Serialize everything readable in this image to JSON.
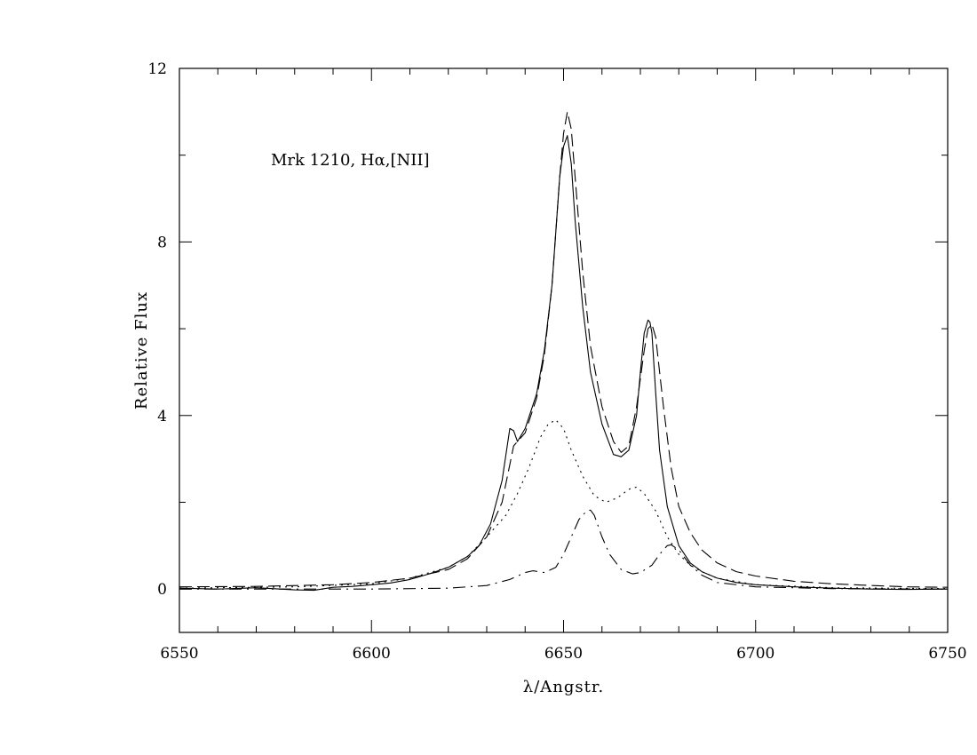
{
  "chart_data": {
    "type": "line",
    "title": "",
    "annotation": "Mrk  1210,  Hα,[NII]",
    "xlabel": "λ/Angstr.",
    "ylabel": "Relative  Flux",
    "xlim": [
      6550,
      6750
    ],
    "ylim": [
      -1,
      12
    ],
    "xticks": [
      6550,
      6600,
      6650,
      6700,
      6750
    ],
    "yticks": [
      0,
      4,
      8,
      12
    ],
    "grid": false,
    "legend": "none",
    "series": [
      {
        "style": "solid",
        "x": [
          6550,
          6560,
          6570,
          6580,
          6585,
          6590,
          6595,
          6600,
          6605,
          6610,
          6615,
          6620,
          6625,
          6628,
          6631,
          6634,
          6636,
          6637,
          6638,
          6640,
          6643,
          6645,
          6647,
          6649,
          6650,
          6651,
          6652,
          6653,
          6655,
          6657,
          6660,
          6663,
          6665,
          6667,
          6669,
          6670,
          6671,
          6672,
          6672.5,
          6673,
          6674,
          6675,
          6677,
          6680,
          6683,
          6686,
          6690,
          6695,
          6700,
          6710,
          6720,
          6730,
          6740,
          6750
        ],
        "y": [
          0.02,
          0.0,
          0.03,
          -0.02,
          -0.03,
          0.04,
          0.06,
          0.1,
          0.14,
          0.22,
          0.35,
          0.5,
          0.75,
          1.0,
          1.5,
          2.5,
          3.7,
          3.65,
          3.4,
          3.7,
          4.5,
          5.5,
          7.0,
          9.5,
          10.2,
          10.45,
          9.8,
          8.5,
          6.5,
          5.0,
          3.8,
          3.1,
          3.05,
          3.2,
          4.0,
          5.0,
          5.9,
          6.2,
          6.15,
          5.9,
          4.5,
          3.2,
          1.9,
          1.0,
          0.6,
          0.4,
          0.25,
          0.15,
          0.1,
          0.05,
          0.02,
          0.0,
          -0.01,
          0.0
        ]
      },
      {
        "style": "dashed",
        "x": [
          6550,
          6570,
          6590,
          6600,
          6610,
          6620,
          6625,
          6630,
          6634,
          6637,
          6640,
          6643,
          6645,
          6647,
          6649,
          6650,
          6651,
          6652,
          6653,
          6655,
          6657,
          6660,
          6663,
          6665,
          6667,
          6669,
          6671,
          6672,
          6673,
          6674,
          6676,
          6678,
          6680,
          6683,
          6686,
          6690,
          6695,
          6700,
          6710,
          6720,
          6730,
          6740,
          6750
        ],
        "y": [
          0.05,
          0.06,
          0.1,
          0.15,
          0.25,
          0.45,
          0.7,
          1.2,
          2.0,
          3.3,
          3.6,
          4.4,
          5.4,
          7.0,
          9.5,
          10.5,
          11.0,
          10.6,
          9.5,
          7.3,
          5.6,
          4.2,
          3.4,
          3.15,
          3.3,
          4.2,
          5.5,
          6.0,
          6.1,
          5.8,
          4.2,
          2.8,
          1.9,
          1.3,
          0.9,
          0.6,
          0.4,
          0.3,
          0.18,
          0.12,
          0.08,
          0.05,
          0.04
        ]
      },
      {
        "style": "dotted",
        "x": [
          6550,
          6580,
          6600,
          6610,
          6620,
          6625,
          6630,
          6635,
          6638,
          6641,
          6644,
          6646,
          6648,
          6650,
          6652,
          6655,
          6658,
          6661,
          6664,
          6667,
          6669,
          6671,
          6674,
          6677,
          6680,
          6683,
          6686,
          6690,
          6700,
          6720,
          6750
        ],
        "y": [
          0.02,
          0.05,
          0.12,
          0.25,
          0.5,
          0.75,
          1.2,
          1.7,
          2.2,
          2.8,
          3.5,
          3.8,
          3.9,
          3.7,
          3.2,
          2.6,
          2.15,
          2.0,
          2.1,
          2.3,
          2.35,
          2.2,
          1.8,
          1.2,
          0.8,
          0.55,
          0.4,
          0.25,
          0.1,
          0.03,
          0.01
        ]
      },
      {
        "style": "dashdot",
        "x": [
          6550,
          6600,
          6620,
          6630,
          6636,
          6640,
          6642,
          6645,
          6648,
          6650,
          6652,
          6654,
          6656,
          6657,
          6658,
          6660,
          6662,
          6665,
          6668,
          6670,
          6673,
          6675,
          6677,
          6678,
          6680,
          6683,
          6686,
          6690,
          6700,
          6720,
          6750
        ],
        "y": [
          0.0,
          0.0,
          0.02,
          0.08,
          0.22,
          0.38,
          0.42,
          0.38,
          0.5,
          0.8,
          1.2,
          1.6,
          1.8,
          1.82,
          1.7,
          1.2,
          0.8,
          0.45,
          0.35,
          0.38,
          0.55,
          0.8,
          1.0,
          1.02,
          0.9,
          0.55,
          0.32,
          0.15,
          0.05,
          0.01,
          0.0
        ]
      }
    ]
  }
}
